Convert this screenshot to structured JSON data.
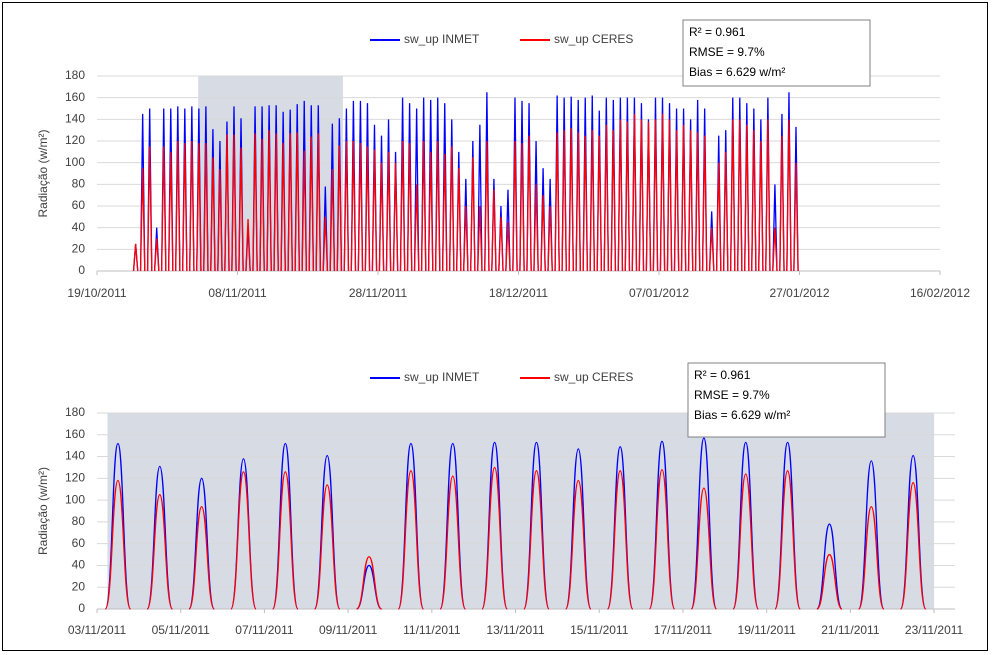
{
  "chart_data": [
    {
      "type": "line",
      "ylabel": "Radiação (w/m²)",
      "stats": [
        "R² = 0.961",
        "RMSE = 9.7%",
        "Bias = 6.629 w/m²"
      ],
      "x": [
        40840.5,
        40841.5,
        40842.5,
        40843.5,
        40844.5,
        40845.5,
        40846.5,
        40847.5,
        40848.5,
        40849.5,
        40850.5,
        40851.5,
        40852.5,
        40853.5,
        40854.5,
        40855.5,
        40856.5,
        40857.5,
        40858.5,
        40859.5,
        40860.5,
        40861.5,
        40862.5,
        40863.5,
        40864.5,
        40865.5,
        40866.5,
        40867.5,
        40868.5,
        40869.5,
        40870.5,
        40871.5,
        40872.5,
        40873.5,
        40874.5,
        40875.5,
        40876.5,
        40877.5,
        40878.5,
        40879.5,
        40880.5,
        40881.5,
        40882.5,
        40883.5,
        40884.5,
        40885.5,
        40886.5,
        40887.5,
        40888.5,
        40889.5,
        40890.5,
        40891.5,
        40892.5,
        40893.5,
        40894.5,
        40895.5,
        40896.5,
        40897.5,
        40898.5,
        40899.5,
        40900.5,
        40901.5,
        40902.5,
        40903.5,
        40904.5,
        40905.5,
        40906.5,
        40907.5,
        40908.5,
        40909.5,
        40910.5,
        40911.5,
        40912.5,
        40913.5,
        40914.5,
        40915.5,
        40916.5,
        40917.5,
        40918.5,
        40919.5,
        40920.5,
        40921.5,
        40922.5,
        40923.5,
        40924.5,
        40925.5,
        40926.5,
        40927.5,
        40928.5,
        40929.5,
        40930.5,
        40931.5,
        40932.5,
        40933.5,
        40934.5
      ],
      "series": [
        {
          "name": "sw_up INMET",
          "color": "#0000ff",
          "values": [
            25,
            145,
            150,
            40,
            150,
            150,
            152,
            150,
            152,
            150,
            152,
            131,
            120,
            138,
            152,
            141,
            40,
            152,
            152,
            153,
            153,
            147,
            149,
            154,
            157,
            153,
            153,
            78,
            136,
            141,
            150,
            157,
            157,
            155,
            135,
            125,
            140,
            110,
            160,
            155,
            150,
            160,
            158,
            160,
            155,
            140,
            110,
            85,
            120,
            135,
            165,
            85,
            60,
            75,
            160,
            157,
            155,
            120,
            95,
            85,
            162,
            160,
            161,
            158,
            160,
            162,
            148,
            160,
            158,
            160,
            160,
            160,
            155,
            140,
            160,
            160,
            155,
            150,
            150,
            140,
            158,
            150,
            55,
            125,
            130,
            160,
            160,
            155,
            150,
            140,
            160,
            80,
            145,
            165,
            133
          ]
        },
        {
          "name": "sw_up CERES",
          "color": "#ff0000",
          "values": [
            25,
            95,
            115,
            30,
            115,
            110,
            120,
            118,
            120,
            118,
            118,
            105,
            94,
            126,
            126,
            114,
            48,
            127,
            122,
            130,
            127,
            118,
            127,
            128,
            111,
            124,
            127,
            50,
            94,
            116,
            120,
            120,
            118,
            115,
            112,
            100,
            110,
            100,
            120,
            118,
            80,
            120,
            110,
            120,
            108,
            115,
            95,
            60,
            105,
            60,
            120,
            75,
            50,
            45,
            120,
            118,
            125,
            80,
            70,
            60,
            128,
            130,
            132,
            128,
            125,
            130,
            125,
            135,
            130,
            140,
            138,
            145,
            140,
            138,
            140,
            145,
            140,
            130,
            135,
            130,
            128,
            125,
            40,
            100,
            110,
            140,
            140,
            135,
            130,
            120,
            140,
            40,
            125,
            140,
            100
          ]
        }
      ],
      "xlim": [
        40835,
        40955
      ],
      "xticks": [
        {
          "value": 40835,
          "label": "19/10/2011"
        },
        {
          "value": 40855,
          "label": "08/11/2011"
        },
        {
          "value": 40875,
          "label": "28/11/2011"
        },
        {
          "value": 40895,
          "label": "18/12/2011"
        },
        {
          "value": 40915,
          "label": "07/01/2012"
        },
        {
          "value": 40935,
          "label": "27/01/2012"
        },
        {
          "value": 40955,
          "label": "16/02/2012"
        }
      ],
      "ylim": [
        0,
        180
      ],
      "yticks": [
        0,
        20,
        40,
        60,
        80,
        100,
        120,
        140,
        160,
        180
      ],
      "grid": true,
      "shaded_range": [
        40849.4,
        40870
      ],
      "shade_color": "#d6dbe4"
    },
    {
      "type": "line",
      "ylabel": "Radiação (w/m²)",
      "stats": [
        "R² = 0.961",
        "RMSE = 9.7%",
        "Bias = 6.629 w/m²"
      ],
      "x": [
        40850.5,
        40851.5,
        40852.5,
        40853.5,
        40854.5,
        40855.5,
        40856.5,
        40857.5,
        40858.5,
        40859.5,
        40860.5,
        40861.5,
        40862.5,
        40863.5,
        40864.5,
        40865.5,
        40866.5,
        40867.5,
        40868.5,
        40869.5
      ],
      "series": [
        {
          "name": "sw_up INMET",
          "color": "#0000ff",
          "values": [
            152,
            131,
            120,
            138,
            152,
            141,
            40,
            152,
            152,
            153,
            153,
            147,
            149,
            154,
            157,
            153,
            153,
            78,
            136,
            141
          ]
        },
        {
          "name": "sw_up CERES",
          "color": "#ff0000",
          "values": [
            118,
            105,
            94,
            126,
            126,
            114,
            48,
            127,
            122,
            130,
            127,
            118,
            127,
            128,
            111,
            124,
            127,
            50,
            94,
            116
          ]
        }
      ],
      "xlim": [
        40850,
        40870.5
      ],
      "xticks": [
        {
          "value": 40850,
          "label": "03/11/2011"
        },
        {
          "value": 40852,
          "label": "05/11/2011"
        },
        {
          "value": 40854,
          "label": "07/11/2011"
        },
        {
          "value": 40856,
          "label": "09/11/2011"
        },
        {
          "value": 40858,
          "label": "11/11/2011"
        },
        {
          "value": 40860,
          "label": "13/11/2011"
        },
        {
          "value": 40862,
          "label": "15/11/2011"
        },
        {
          "value": 40864,
          "label": "17/11/2011"
        },
        {
          "value": 40866,
          "label": "19/11/2011"
        },
        {
          "value": 40868,
          "label": "21/11/2011"
        },
        {
          "value": 40870,
          "label": "23/11/2011"
        }
      ],
      "ylim": [
        0,
        180
      ],
      "yticks": [
        0,
        20,
        40,
        60,
        80,
        100,
        120,
        140,
        160,
        180
      ],
      "grid": true,
      "shaded_range": [
        40850.25,
        40870
      ],
      "shade_color": "#d6dbe4"
    }
  ]
}
